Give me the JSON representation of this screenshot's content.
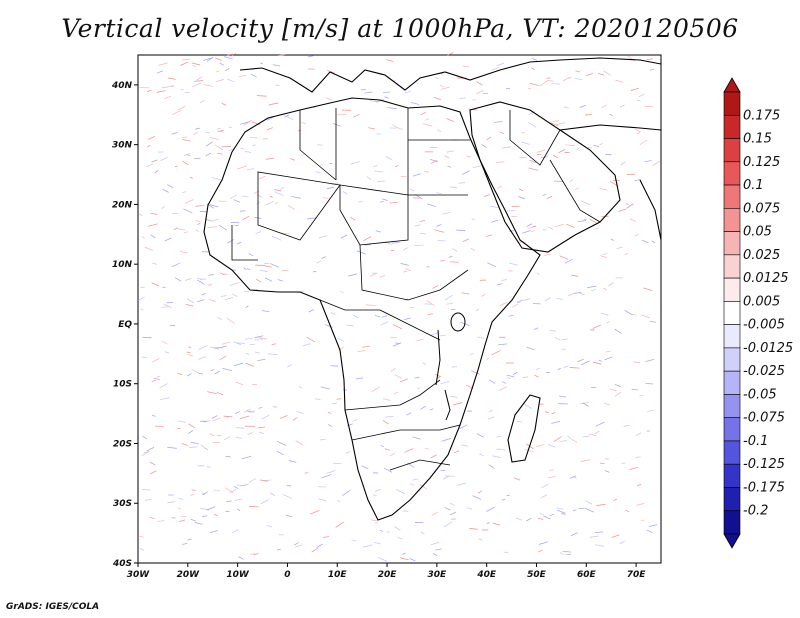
{
  "title": "Vertical velocity [m/s] at 1000hPa, VT: 2020120506",
  "credit": "GrADS: IGES/COLA",
  "map": {
    "type": "map",
    "lon_range": [
      -30,
      75
    ],
    "lat_range": [
      -40,
      45
    ],
    "lon_ticks": [
      "30W",
      "20W",
      "10W",
      "0",
      "10E",
      "20E",
      "30E",
      "40E",
      "50E",
      "60E",
      "70E"
    ],
    "lat_ticks": [
      "40S",
      "30S",
      "20S",
      "10S",
      "EQ",
      "10N",
      "20N",
      "30N",
      "40N"
    ]
  },
  "colorbar": {
    "levels": [
      "0.175",
      "0.15",
      "0.125",
      "0.1",
      "0.075",
      "0.05",
      "0.025",
      "0.0125",
      "0.005",
      "-0.005",
      "-0.0125",
      "-0.025",
      "-0.05",
      "-0.075",
      "-0.1",
      "-0.125",
      "-0.175",
      "-0.2"
    ],
    "colors": [
      "#b01818",
      "#c82828",
      "#dc4040",
      "#e85858",
      "#ee7878",
      "#f29494",
      "#f6b4b4",
      "#fad2d2",
      "#fdeaea",
      "#ffffff",
      "#eaeaff",
      "#d0d0fa",
      "#b4b4f6",
      "#9494f0",
      "#7474e8",
      "#5454dc",
      "#3434c8",
      "#2020b0",
      "#101090"
    ],
    "top_color": "#b01818",
    "bottom_color": "#101090"
  }
}
